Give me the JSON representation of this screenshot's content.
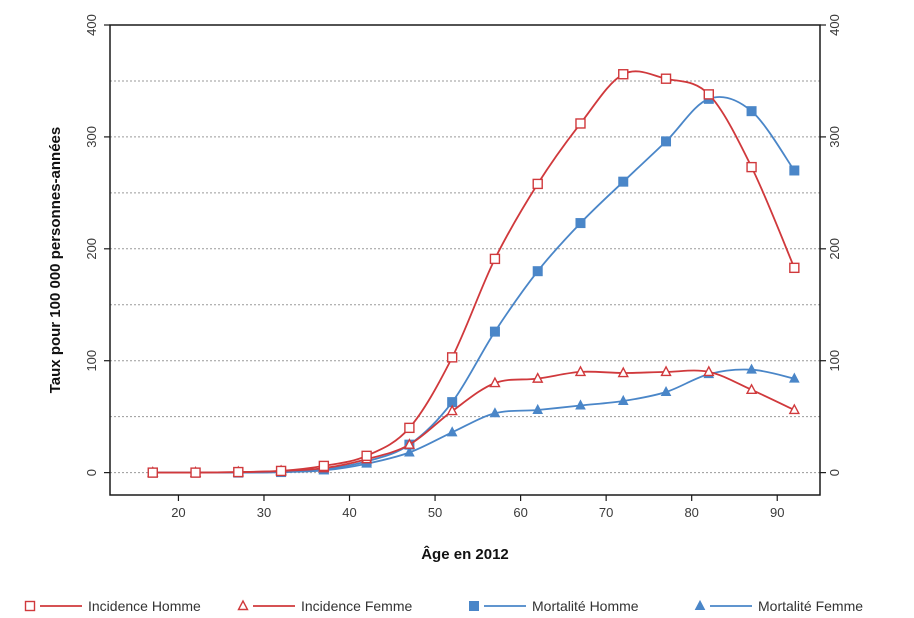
{
  "chart_data": {
    "type": "line",
    "xlabel": "Âge en 2012",
    "ylabel": "Taux pour 100 000 personnes-années",
    "xlim": [
      12,
      95
    ],
    "ylim": [
      -20,
      400
    ],
    "x_ticks": [
      20,
      30,
      40,
      50,
      60,
      70,
      80,
      90
    ],
    "y_ticks": [
      0,
      100,
      200,
      300,
      400
    ],
    "y_grid": [
      0,
      50,
      100,
      150,
      200,
      250,
      300,
      350,
      400
    ],
    "grid": true,
    "legend_position": "bottom",
    "series": [
      {
        "name": "Incidence Homme",
        "color": "#d0393c",
        "marker": "open-square",
        "x": [
          17,
          22,
          27,
          32,
          37,
          42,
          47,
          52,
          57,
          62,
          67,
          72,
          77,
          82,
          87,
          92
        ],
        "y": [
          0,
          0,
          0.5,
          1.5,
          6,
          15,
          40,
          103,
          191,
          258,
          312,
          356,
          352,
          338,
          273,
          183
        ]
      },
      {
        "name": "Incidence Femme",
        "color": "#d0393c",
        "marker": "open-triangle",
        "x": [
          17,
          22,
          27,
          32,
          37,
          42,
          47,
          52,
          57,
          62,
          67,
          72,
          77,
          82,
          87,
          92
        ],
        "y": [
          0,
          0,
          0.5,
          1.5,
          4,
          12,
          25,
          55,
          80,
          84,
          90,
          89,
          90,
          90,
          74,
          56
        ]
      },
      {
        "name": "Mortalité Homme",
        "color": "#4a86c8",
        "marker": "filled-square",
        "x": [
          17,
          22,
          27,
          32,
          37,
          42,
          47,
          52,
          57,
          62,
          67,
          72,
          77,
          82,
          87,
          92
        ],
        "y": [
          0,
          0,
          0,
          0.5,
          3,
          10,
          25,
          63,
          126,
          180,
          223,
          260,
          296,
          334,
          323,
          270
        ]
      },
      {
        "name": "Mortalité Femme",
        "color": "#4a86c8",
        "marker": "filled-triangle",
        "x": [
          17,
          22,
          27,
          32,
          37,
          42,
          47,
          52,
          57,
          62,
          67,
          72,
          77,
          82,
          87,
          92
        ],
        "y": [
          0,
          0,
          0,
          0.5,
          2,
          8,
          18,
          36,
          53,
          56,
          60,
          64,
          72,
          88,
          92,
          84
        ]
      }
    ]
  }
}
